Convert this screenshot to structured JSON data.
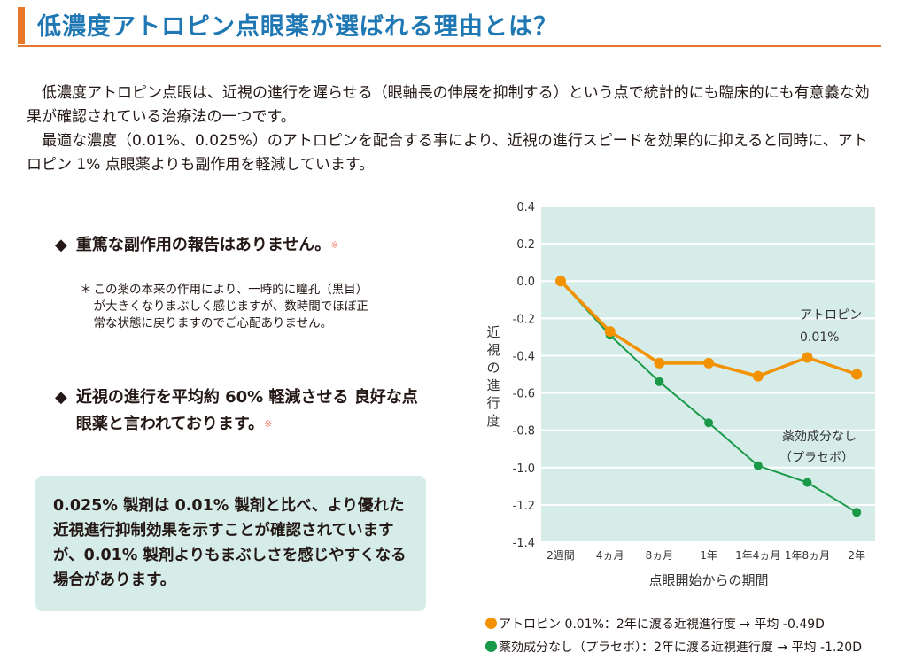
{
  "title": "低濃度アトロピン点眼薬が選ばれる理由とは？",
  "intro": [
    "低濃度アトロピン点眼は、近視の進行を遅らせる（眼軸長の伸展を抑制する）という点で統計的にも臨床的にも有意義な効果が確認されている治療法の一つです。",
    "最適な濃度（0.01%、0.025%）のアトロピンを配合する事により、近視の進行スピードを効果的に抑えると同時に、アトロピン 1% 点眼薬よりも副作用を軽減しています。"
  ],
  "points": [
    {
      "bullet": "◆",
      "text": "重篤な副作用の報告はありません。",
      "ref": "※"
    },
    {
      "bullet": "◆",
      "text": "近視の進行を平均約 60% 軽減させる 良好な点眼薬と言われております。",
      "ref": "※"
    }
  ],
  "note": {
    "mark": "＊",
    "text": "この薬の本来の作用により、一時的に瞳孔（黒目）が大きくなりまぶしく感じますが、数時間でほぼ正常な状態に戻りますのでご心配ありません。"
  },
  "box_text": "0.025% 製剤は 0.01% 製剤と比べ、より優れた近視進行抑制効果を示すことが確認されていますが、0.01% 製剤よりもまぶしさを感じやすくなる場合があります。",
  "colors": {
    "accent": "#e8792a",
    "title": "#1f78b4",
    "atropine": "#f39200",
    "placebo": "#1a9a48",
    "plot_bg": "#d6ece9"
  },
  "chart_data": {
    "type": "line",
    "categories": [
      "2週間",
      "4ヵ月",
      "8ヵ月",
      "1年",
      "1年4ヵ月",
      "1年8ヵ月",
      "2年"
    ],
    "xlabel": "点眼開始からの期間",
    "ylabel": "近視の進行度",
    "ylim": [
      -1.4,
      0.4
    ],
    "yticks": [
      "0.4",
      "0.2",
      "0.0",
      "-0.2",
      "-0.4",
      "-0.6",
      "-0.8",
      "-1.0",
      "-1.2",
      "-1.4"
    ],
    "grid": true,
    "series": [
      {
        "name": "アトロピン 0.01%",
        "label_lines": [
          "アトロピン",
          "0.01%"
        ],
        "color": "#f39200",
        "values": [
          0,
          -0.27,
          -0.44,
          -0.44,
          -0.51,
          -0.41,
          -0.5
        ]
      },
      {
        "name": "薬効成分なし（プラセボ）",
        "label_lines": [
          "薬効成分なし",
          "（プラセボ）"
        ],
        "color": "#1a9a48",
        "values": [
          0,
          -0.29,
          -0.54,
          -0.76,
          -0.99,
          -1.08,
          -1.24
        ]
      }
    ],
    "legend": [
      "アトロピン 0.01%：2年に渡る近視進行度 → 平均 -0.49D",
      "薬効成分なし（プラセボ）：2年に渡る近視進行度 → 平均 -1.20D"
    ]
  }
}
